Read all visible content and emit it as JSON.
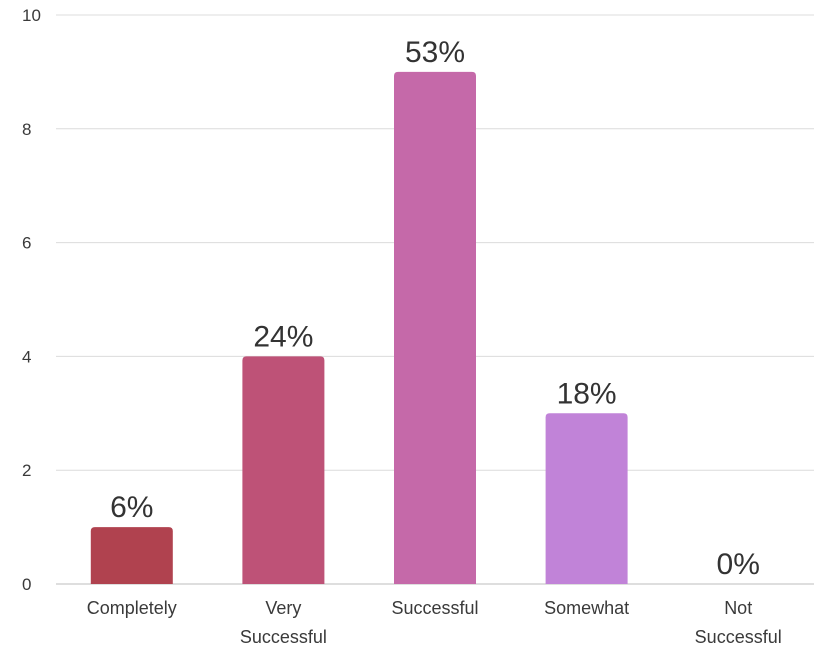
{
  "chart_data": {
    "type": "bar",
    "title": "",
    "xlabel": "",
    "ylabel": "",
    "categories": [
      [
        "Completely"
      ],
      [
        "Very",
        "Successful"
      ],
      [
        "Successful"
      ],
      [
        "Somewhat"
      ],
      [
        "Not",
        "Successful"
      ]
    ],
    "values": [
      1,
      4,
      9,
      3,
      0
    ],
    "data_labels": [
      "6%",
      "24%",
      "53%",
      "18%",
      "0%"
    ],
    "colors": [
      "#b0424f",
      "#be5277",
      "#c569a9",
      "#c183d8",
      "#c183d8"
    ],
    "ylim": [
      0,
      10
    ],
    "yticks": [
      0,
      2,
      4,
      6,
      8,
      10
    ],
    "grid": true,
    "legend": "none"
  }
}
